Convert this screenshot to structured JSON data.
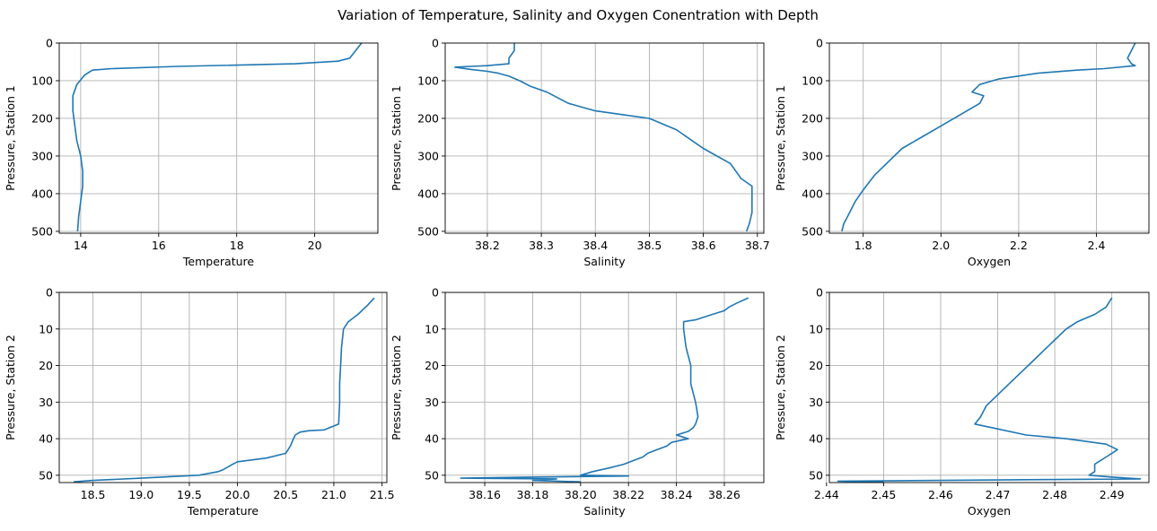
{
  "figure": {
    "suptitle": "Variation of Temperature, Salinity and Oxygen Conentration with Depth"
  },
  "chart_data": [
    {
      "type": "line",
      "xlabel": "Temperature",
      "ylabel": "Pressure, Station 1",
      "xlim": [
        13.45,
        21.62
      ],
      "ylim": [
        505,
        0
      ],
      "xticks": [
        14,
        16,
        18,
        20
      ],
      "yticks": [
        0,
        100,
        200,
        300,
        400,
        500
      ],
      "grid": true,
      "color": "#1f77b4",
      "series": [
        {
          "x": [
            21.2,
            21.05,
            20.9,
            20.6,
            19.5,
            16.5,
            14.8,
            14.3,
            14.1,
            13.9,
            13.8,
            13.8,
            13.85,
            13.9,
            14.0,
            14.05,
            14.05,
            14.0,
            13.95,
            13.92
          ],
          "y": [
            0,
            20,
            40,
            48,
            55,
            62,
            68,
            72,
            85,
            110,
            140,
            180,
            220,
            260,
            300,
            340,
            380,
            420,
            460,
            500
          ]
        }
      ]
    },
    {
      "type": "line",
      "xlabel": "Salinity",
      "ylabel": "Pressure, Station 1",
      "xlim": [
        38.122,
        38.712
      ],
      "ylim": [
        505,
        0
      ],
      "xticks": [
        38.2,
        38.3,
        38.4,
        38.5,
        38.6,
        38.7
      ],
      "yticks": [
        0,
        100,
        200,
        300,
        400,
        500
      ],
      "grid": true,
      "color": "#1f77b4",
      "series": [
        {
          "x": [
            38.25,
            38.25,
            38.24,
            38.24,
            38.2,
            38.17,
            38.14,
            38.17,
            38.2,
            38.22,
            38.24,
            38.26,
            38.28,
            38.31,
            38.35,
            38.4,
            38.45,
            38.5,
            38.55,
            38.6,
            38.65,
            38.67,
            38.69,
            38.69,
            38.69,
            38.685,
            38.68
          ],
          "y": [
            0,
            20,
            40,
            55,
            60,
            62,
            64,
            70,
            75,
            80,
            88,
            100,
            115,
            130,
            160,
            180,
            190,
            200,
            230,
            280,
            320,
            360,
            380,
            400,
            450,
            480,
            500
          ]
        }
      ]
    },
    {
      "type": "line",
      "xlabel": "Oxygen",
      "ylabel": "Pressure, Station 1",
      "xlim": [
        1.713,
        2.535
      ],
      "ylim": [
        505,
        0
      ],
      "xticks": [
        1.8,
        2.0,
        2.2,
        2.4
      ],
      "yticks": [
        0,
        100,
        200,
        300,
        400,
        500
      ],
      "grid": true,
      "color": "#1f77b4",
      "series": [
        {
          "x": [
            2.5,
            2.49,
            2.48,
            2.49,
            2.5,
            2.42,
            2.35,
            2.25,
            2.15,
            2.1,
            2.08,
            2.11,
            2.1,
            2.05,
            2.0,
            1.95,
            1.9,
            1.86,
            1.83,
            1.8,
            1.78,
            1.76,
            1.75,
            1.745
          ],
          "y": [
            0,
            20,
            40,
            55,
            60,
            68,
            72,
            80,
            95,
            110,
            130,
            140,
            160,
            190,
            220,
            250,
            280,
            320,
            350,
            390,
            420,
            460,
            480,
            500
          ]
        }
      ]
    },
    {
      "type": "line",
      "xlabel": "Temperature",
      "ylabel": "Pressure, Station 2",
      "xlim": [
        18.15,
        21.55
      ],
      "ylim": [
        52,
        0
      ],
      "xticks": [
        18.5,
        19.0,
        19.5,
        20.0,
        20.5,
        21.0,
        21.5
      ],
      "yticks": [
        0,
        10,
        20,
        30,
        40,
        50
      ],
      "grid": true,
      "color": "#1f77b4",
      "series": [
        {
          "x": [
            21.42,
            21.35,
            21.25,
            21.15,
            21.1,
            21.08,
            21.07,
            21.06,
            21.06,
            21.05,
            20.9,
            20.75,
            20.65,
            20.6,
            20.58,
            20.55,
            20.5,
            20.3,
            20.0,
            19.95,
            19.85,
            19.8,
            19.6,
            19.0,
            18.5,
            18.3
          ],
          "y": [
            1.5,
            3.5,
            6,
            8,
            10,
            15,
            20,
            25,
            30,
            36,
            37.6,
            37.8,
            38.2,
            39,
            40,
            42,
            44,
            45.3,
            46.3,
            47,
            48.5,
            49,
            50,
            50.8,
            51.4,
            51.8
          ]
        }
      ]
    },
    {
      "type": "line",
      "xlabel": "Salinity",
      "ylabel": "Pressure, Station 2",
      "xlim": [
        38.1435,
        38.2765
      ],
      "ylim": [
        52,
        0
      ],
      "xticks": [
        38.16,
        38.18,
        38.2,
        38.22,
        38.24,
        38.26
      ],
      "yticks": [
        0,
        10,
        20,
        30,
        40,
        50
      ],
      "grid": true,
      "color": "#1f77b4",
      "series": [
        {
          "x": [
            38.27,
            38.265,
            38.262,
            38.26,
            38.255,
            38.248,
            38.243,
            38.243,
            38.244,
            38.246,
            38.246,
            38.248,
            38.249,
            38.248,
            38.247,
            38.245,
            38.24,
            38.245,
            38.238,
            38.236,
            38.232,
            38.228,
            38.226,
            38.222,
            38.218,
            38.212,
            38.205,
            38.2,
            38.22,
            38.18,
            38.15,
            38.19,
            38.18,
            38.2
          ],
          "y": [
            1.5,
            3,
            4,
            5,
            6,
            7.5,
            8,
            10,
            15,
            20,
            25,
            30,
            34,
            36,
            37,
            38,
            39,
            40,
            41,
            42,
            43,
            44,
            45,
            46,
            47,
            48,
            49,
            50,
            50.2,
            50.5,
            50.8,
            51.0,
            51.4,
            51.8
          ]
        }
      ]
    },
    {
      "type": "line",
      "xlabel": "Oxygen",
      "ylabel": "Pressure, Station 2",
      "xlim": [
        2.4405,
        2.4965
      ],
      "ylim": [
        52,
        0
      ],
      "xticks": [
        2.44,
        2.45,
        2.46,
        2.47,
        2.48,
        2.49
      ],
      "yticks": [
        0,
        10,
        20,
        30,
        40,
        50
      ],
      "grid": true,
      "color": "#1f77b4",
      "series": [
        {
          "x": [
            2.49,
            2.489,
            2.487,
            2.484,
            2.482,
            2.48,
            2.478,
            2.476,
            2.474,
            2.472,
            2.47,
            2.468,
            2.467,
            2.466,
            2.469,
            2.475,
            2.482,
            2.489,
            2.491,
            2.489,
            2.487,
            2.487,
            2.486,
            2.49,
            2.495,
            2.47,
            2.442,
            2.45
          ],
          "y": [
            1.5,
            4,
            6,
            8,
            10,
            13,
            16,
            19,
            22,
            25,
            28,
            31,
            34,
            36,
            37,
            39,
            40,
            41.5,
            43,
            45,
            47,
            49,
            50,
            50.5,
            51,
            51.3,
            51.6,
            51.9
          ]
        }
      ]
    }
  ]
}
